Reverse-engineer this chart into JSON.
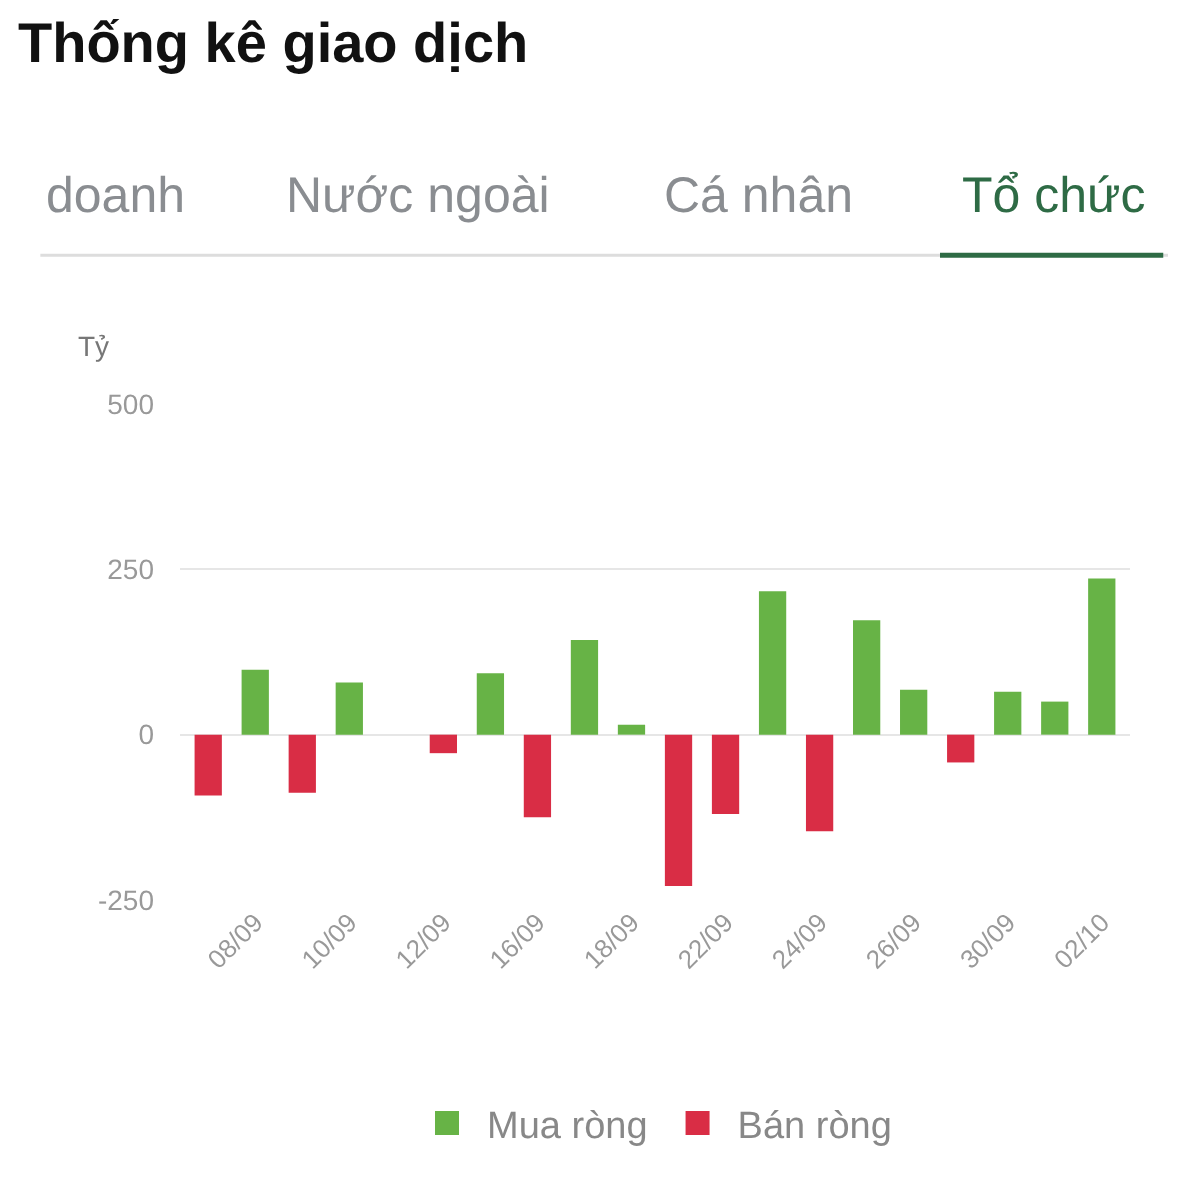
{
  "chart_data": {
    "type": "bar",
    "title": "Thống kê giao dịch",
    "annotations": [
      "doanh",
      "Nước ngoài",
      "Cá nhân",
      "Tổ chức"
    ],
    "ylabel": "Tỷ",
    "categories": [
      null,
      "08/09",
      null,
      "10/09",
      null,
      "12/09",
      null,
      "16/09",
      null,
      "18/09",
      null,
      "22/09",
      null,
      "24/09",
      null,
      "26/09",
      null,
      "30/09",
      null,
      "02/10"
    ],
    "series": [
      {
        "name": "Mua ròng",
        "color": "#67b346",
        "values": [
          null,
          98,
          null,
          79,
          null,
          null,
          93,
          null,
          143,
          15,
          null,
          null,
          217,
          null,
          173,
          68,
          null,
          65,
          50,
          236
        ]
      },
      {
        "name": "Bán ròng",
        "color": "#d92d45",
        "values": [
          -92,
          null,
          -88,
          null,
          null,
          -28,
          null,
          -125,
          null,
          null,
          -229,
          -120,
          null,
          -146,
          null,
          null,
          -42,
          null,
          null,
          null
        ]
      }
    ],
    "ylim": [
      -250,
      500
    ],
    "yticks": [
      -250,
      0,
      250,
      500
    ],
    "grid": "y",
    "legend": "bottom"
  }
}
